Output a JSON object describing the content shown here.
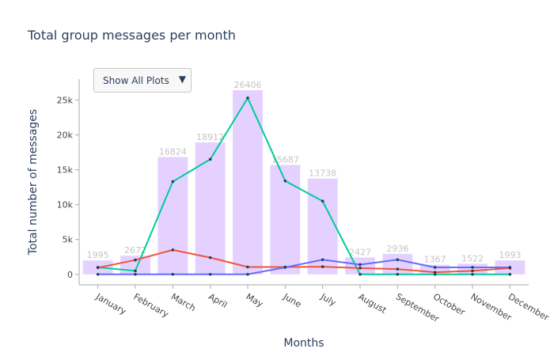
{
  "chart_data": {
    "type": "bar",
    "title": "Total group messages per month",
    "xlabel": "Months",
    "ylabel": "Total number of messages",
    "ylim": [
      -1500,
      28000
    ],
    "yticks": [
      0,
      5000,
      10000,
      15000,
      20000,
      25000
    ],
    "ytick_labels": [
      "0",
      "5k",
      "10k",
      "15k",
      "20k",
      "25k"
    ],
    "categories": [
      "January",
      "February",
      "March",
      "April",
      "May",
      "June",
      "July",
      "August",
      "September",
      "October",
      "November",
      "December"
    ],
    "values": [
      1995,
      2672,
      16824,
      18912,
      26406,
      15687,
      13738,
      2427,
      2936,
      1367,
      1522,
      1993
    ],
    "bar_color": "#e4d1ff",
    "grid": false,
    "series": [
      {
        "type": "line",
        "color": "#00cc96",
        "values": [
          1000,
          500,
          13300,
          16500,
          25300,
          13400,
          10500,
          0,
          0,
          0,
          0,
          0
        ]
      },
      {
        "type": "line",
        "color": "#ef553b",
        "values": [
          950,
          2050,
          3500,
          2400,
          1050,
          1050,
          1100,
          900,
          750,
          300,
          500,
          900
        ]
      },
      {
        "type": "line",
        "color": "#636efa",
        "values": [
          0,
          0,
          0,
          0,
          0,
          1000,
          2100,
          1400,
          2100,
          1000,
          1000,
          1000
        ]
      }
    ]
  },
  "controls": {
    "dropdown_label": "Show All Plots",
    "dropdown_icon": "caret-down-icon"
  }
}
